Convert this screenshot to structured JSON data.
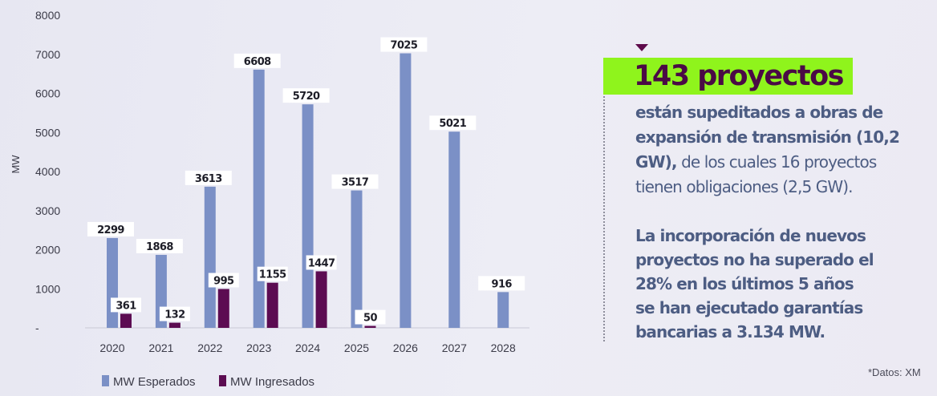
{
  "chart_data": {
    "type": "bar",
    "categories": [
      "2020",
      "2021",
      "2022",
      "2023",
      "2024",
      "2025",
      "2026",
      "2027",
      "2028"
    ],
    "series": [
      {
        "name": "MW Esperados",
        "color": "#7b90c6",
        "values": [
          2299,
          1868,
          3613,
          6608,
          5720,
          3517,
          7025,
          5021,
          916
        ]
      },
      {
        "name": "MW Ingresados",
        "color": "#5c0c52",
        "values": [
          361,
          132,
          995,
          1155,
          1447,
          50,
          null,
          null,
          null
        ]
      }
    ],
    "ylabel": "MW",
    "ylim": [
      0,
      8000
    ],
    "yticks": [
      "-",
      "1000",
      "2000",
      "3000",
      "4000",
      "5000",
      "6000",
      "7000",
      "8000"
    ],
    "grid": false,
    "legend": "bottom-left"
  },
  "text_panel": {
    "headline": "143 proyectos",
    "para1_bold": "están supeditados a obras de expansión de transmisión (10,2 GW),",
    "para1_regular": " de los cuales 16 proyectos tienen obligaciones (2,5 GW).",
    "para2_lines": [
      "La incorporación de nuevos",
      "proyectos no ha superado el",
      "28% en los últimos 5 años",
      "se han ejecutado garantías",
      "bancarias a 3.134 MW."
    ],
    "source": "*Datos: XM"
  },
  "colors": {
    "accent_green": "#8ff41c",
    "headline_text": "#4a0a45",
    "body_text": "#4d5d83"
  }
}
